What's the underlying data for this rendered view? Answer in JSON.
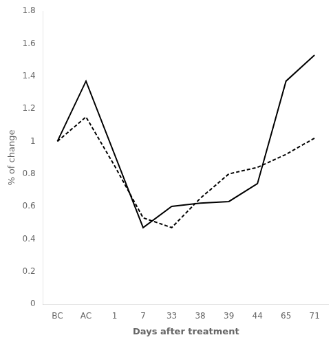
{
  "chart_data": {
    "type": "line",
    "x_label": "Days after treatment",
    "y_label": "% of change",
    "categories": [
      "BC",
      "AC",
      "1",
      "7",
      "33",
      "38",
      "39",
      "44",
      "65",
      "71"
    ],
    "series": [
      {
        "color": "#000000",
        "line_style": "solid",
        "values": [
          1.0,
          1.37,
          null,
          0.47,
          0.6,
          0.62,
          0.63,
          0.74,
          1.37,
          1.53
        ]
      },
      {
        "color": "#000000",
        "line_style": "dashed",
        "values": [
          1.0,
          1.15,
          0.85,
          0.53,
          0.47,
          0.65,
          0.8,
          0.84,
          0.92,
          1.02
        ]
      }
    ],
    "ylim": [
      0,
      1.8
    ],
    "yticks": [
      0,
      0.2,
      0.4,
      0.6,
      0.8,
      1,
      1.2,
      1.4,
      1.6,
      1.8
    ],
    "grid": false
  }
}
